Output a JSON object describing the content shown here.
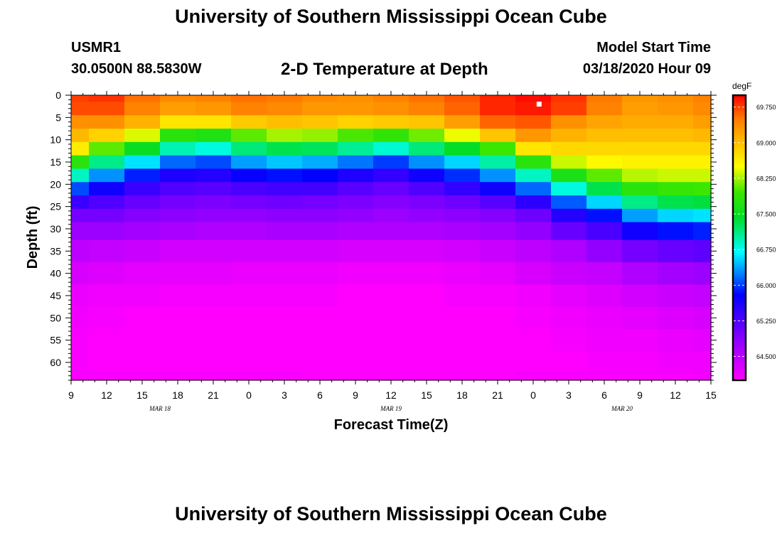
{
  "header": {
    "title": "University of Southern Mississippi Ocean Cube",
    "station_id": "USMR1",
    "station_coords": "30.0500N 88.5830W",
    "plot_title": "2-D Temperature at Depth",
    "start_label": "Model Start Time",
    "start_value": "03/18/2020 Hour 09"
  },
  "footer": {
    "title": "University of Southern Mississippi Ocean Cube"
  },
  "chart_data": {
    "type": "heatmap",
    "title": "2-D Temperature at Depth",
    "xlabel": "Forecast Time(Z)",
    "ylabel": "Depth (ft)",
    "x_range_hours": [
      0,
      54
    ],
    "y_range_ft": [
      0,
      64
    ],
    "x_ticks": [
      {
        "hour": 0,
        "label": "9"
      },
      {
        "hour": 3,
        "label": "12"
      },
      {
        "hour": 6,
        "label": "15"
      },
      {
        "hour": 9,
        "label": "18"
      },
      {
        "hour": 12,
        "label": "21"
      },
      {
        "hour": 15,
        "label": "0"
      },
      {
        "hour": 18,
        "label": "3"
      },
      {
        "hour": 21,
        "label": "6"
      },
      {
        "hour": 24,
        "label": "9"
      },
      {
        "hour": 27,
        "label": "12"
      },
      {
        "hour": 30,
        "label": "15"
      },
      {
        "hour": 33,
        "label": "18"
      },
      {
        "hour": 36,
        "label": "21"
      },
      {
        "hour": 39,
        "label": "0"
      },
      {
        "hour": 42,
        "label": "3"
      },
      {
        "hour": 45,
        "label": "6"
      },
      {
        "hour": 48,
        "label": "9"
      },
      {
        "hour": 51,
        "label": "12"
      },
      {
        "hour": 54,
        "label": "15"
      }
    ],
    "date_labels": [
      {
        "hour": 7.5,
        "label": "MAR 18"
      },
      {
        "hour": 27,
        "label": "MAR 19"
      },
      {
        "hour": 46.5,
        "label": "MAR 20"
      }
    ],
    "y_ticks": [
      0,
      5,
      10,
      15,
      20,
      25,
      30,
      35,
      40,
      45,
      50,
      55,
      60
    ],
    "colorbar": {
      "unit": "degF",
      "min": 64.0,
      "max": 70.0,
      "tick_values": [
        64.5,
        65.25,
        66.0,
        66.75,
        67.5,
        68.25,
        69.0,
        69.75
      ],
      "tick_labels": [
        "64.500",
        "65.250",
        "66.000",
        "66.750",
        "67.500",
        "68.250",
        "69.000",
        "69.750"
      ]
    },
    "temperature_grid": {
      "x_hours": [
        0,
        3,
        6,
        9,
        12,
        15,
        18,
        21,
        24,
        27,
        30,
        33,
        36,
        39,
        42,
        45,
        48,
        51,
        54
      ],
      "depth_ft": [
        0,
        3,
        6,
        9,
        12,
        15,
        18,
        21,
        24,
        27,
        30,
        35,
        40,
        45,
        50,
        55,
        60,
        64
      ],
      "values_degF": [
        [
          69.75,
          69.7,
          69.35,
          69.05,
          68.65,
          67.8,
          66.9,
          66.05,
          65.4,
          65.0,
          64.75,
          64.5,
          64.3,
          64.15,
          64.1,
          64.05,
          64.05,
          64.05
        ],
        [
          69.8,
          69.7,
          69.35,
          68.85,
          68.05,
          67.1,
          66.3,
          65.7,
          65.25,
          65.0,
          64.75,
          64.45,
          64.25,
          64.1,
          64.05,
          64.0,
          64.0,
          64.05
        ],
        [
          69.55,
          69.45,
          69.1,
          68.4,
          67.5,
          66.6,
          65.9,
          65.4,
          65.1,
          64.9,
          64.7,
          64.4,
          64.2,
          64.1,
          64.0,
          64.0,
          64.0,
          64.05
        ],
        [
          69.4,
          69.25,
          68.7,
          67.8,
          66.95,
          66.15,
          65.6,
          65.25,
          65.0,
          64.85,
          64.65,
          64.35,
          64.2,
          64.05,
          64.0,
          64.0,
          64.0,
          64.05
        ],
        [
          69.45,
          69.3,
          68.7,
          67.7,
          66.8,
          66.05,
          65.55,
          65.2,
          64.95,
          64.8,
          64.6,
          64.35,
          64.2,
          64.05,
          64.0,
          64.0,
          64.0,
          64.05
        ],
        [
          69.55,
          69.45,
          68.9,
          68.05,
          67.15,
          66.35,
          65.75,
          65.3,
          65.0,
          64.8,
          64.6,
          64.35,
          64.15,
          64.05,
          64.0,
          63.95,
          64.0,
          64.05
        ],
        [
          69.5,
          69.4,
          69.0,
          68.25,
          67.3,
          66.5,
          65.85,
          65.35,
          65.05,
          64.85,
          64.65,
          64.35,
          64.15,
          64.05,
          64.0,
          63.95,
          63.95,
          64.05
        ],
        [
          69.4,
          69.3,
          68.95,
          68.2,
          67.25,
          66.4,
          65.8,
          65.35,
          65.0,
          64.85,
          64.65,
          64.35,
          64.15,
          64.05,
          63.95,
          63.95,
          63.95,
          64.0
        ],
        [
          69.35,
          69.3,
          68.85,
          68.0,
          67.05,
          66.2,
          65.6,
          65.2,
          64.95,
          64.8,
          64.6,
          64.3,
          64.1,
          64.0,
          63.95,
          63.95,
          63.95,
          64.0
        ],
        [
          69.45,
          69.35,
          68.9,
          67.85,
          66.85,
          66.0,
          65.45,
          65.1,
          64.9,
          64.75,
          64.6,
          64.3,
          64.1,
          64.0,
          63.95,
          63.95,
          63.95,
          64.0
        ],
        [
          69.55,
          69.45,
          68.95,
          68.1,
          67.15,
          66.3,
          65.7,
          65.25,
          64.95,
          64.8,
          64.6,
          64.3,
          64.1,
          64.0,
          63.95,
          63.95,
          63.95,
          64.0
        ],
        [
          69.65,
          69.6,
          69.25,
          68.45,
          67.45,
          66.55,
          65.95,
          65.45,
          65.05,
          64.85,
          64.65,
          64.35,
          64.15,
          64.05,
          63.95,
          63.95,
          63.95,
          64.0
        ],
        [
          69.85,
          69.85,
          69.6,
          68.95,
          67.95,
          67.0,
          66.3,
          65.7,
          65.2,
          64.9,
          64.7,
          64.4,
          64.2,
          64.05,
          64.0,
          63.95,
          63.95,
          64.0
        ],
        [
          69.95,
          69.9,
          69.65,
          69.3,
          68.7,
          67.8,
          66.9,
          66.15,
          65.5,
          65.05,
          64.8,
          64.5,
          64.3,
          64.1,
          64.05,
          64.0,
          64.0,
          64.05
        ],
        [
          69.8,
          69.75,
          69.35,
          69.1,
          68.8,
          68.35,
          67.65,
          66.8,
          66.1,
          65.55,
          65.1,
          64.6,
          64.4,
          64.2,
          64.1,
          64.05,
          64.0,
          64.05
        ],
        [
          69.5,
          69.45,
          69.2,
          69.0,
          68.8,
          68.55,
          68.05,
          67.3,
          66.55,
          65.85,
          65.3,
          64.8,
          64.45,
          64.25,
          64.15,
          64.1,
          64.05,
          64.05
        ],
        [
          69.3,
          69.25,
          69.15,
          69.0,
          68.8,
          68.6,
          68.3,
          67.8,
          67.1,
          66.35,
          65.7,
          65.0,
          64.6,
          64.35,
          64.2,
          64.1,
          64.05,
          64.05
        ],
        [
          69.35,
          69.3,
          69.15,
          69.0,
          68.8,
          68.6,
          68.35,
          67.9,
          67.3,
          66.55,
          65.85,
          65.1,
          64.7,
          64.4,
          64.25,
          64.15,
          64.1,
          64.05
        ],
        [
          69.45,
          69.4,
          69.25,
          69.05,
          68.8,
          68.6,
          68.35,
          67.95,
          67.35,
          66.6,
          65.9,
          65.15,
          64.75,
          64.45,
          64.3,
          64.2,
          64.1,
          64.1
        ]
      ]
    },
    "marker": {
      "hour": 39.5,
      "depth_ft": 2
    }
  }
}
